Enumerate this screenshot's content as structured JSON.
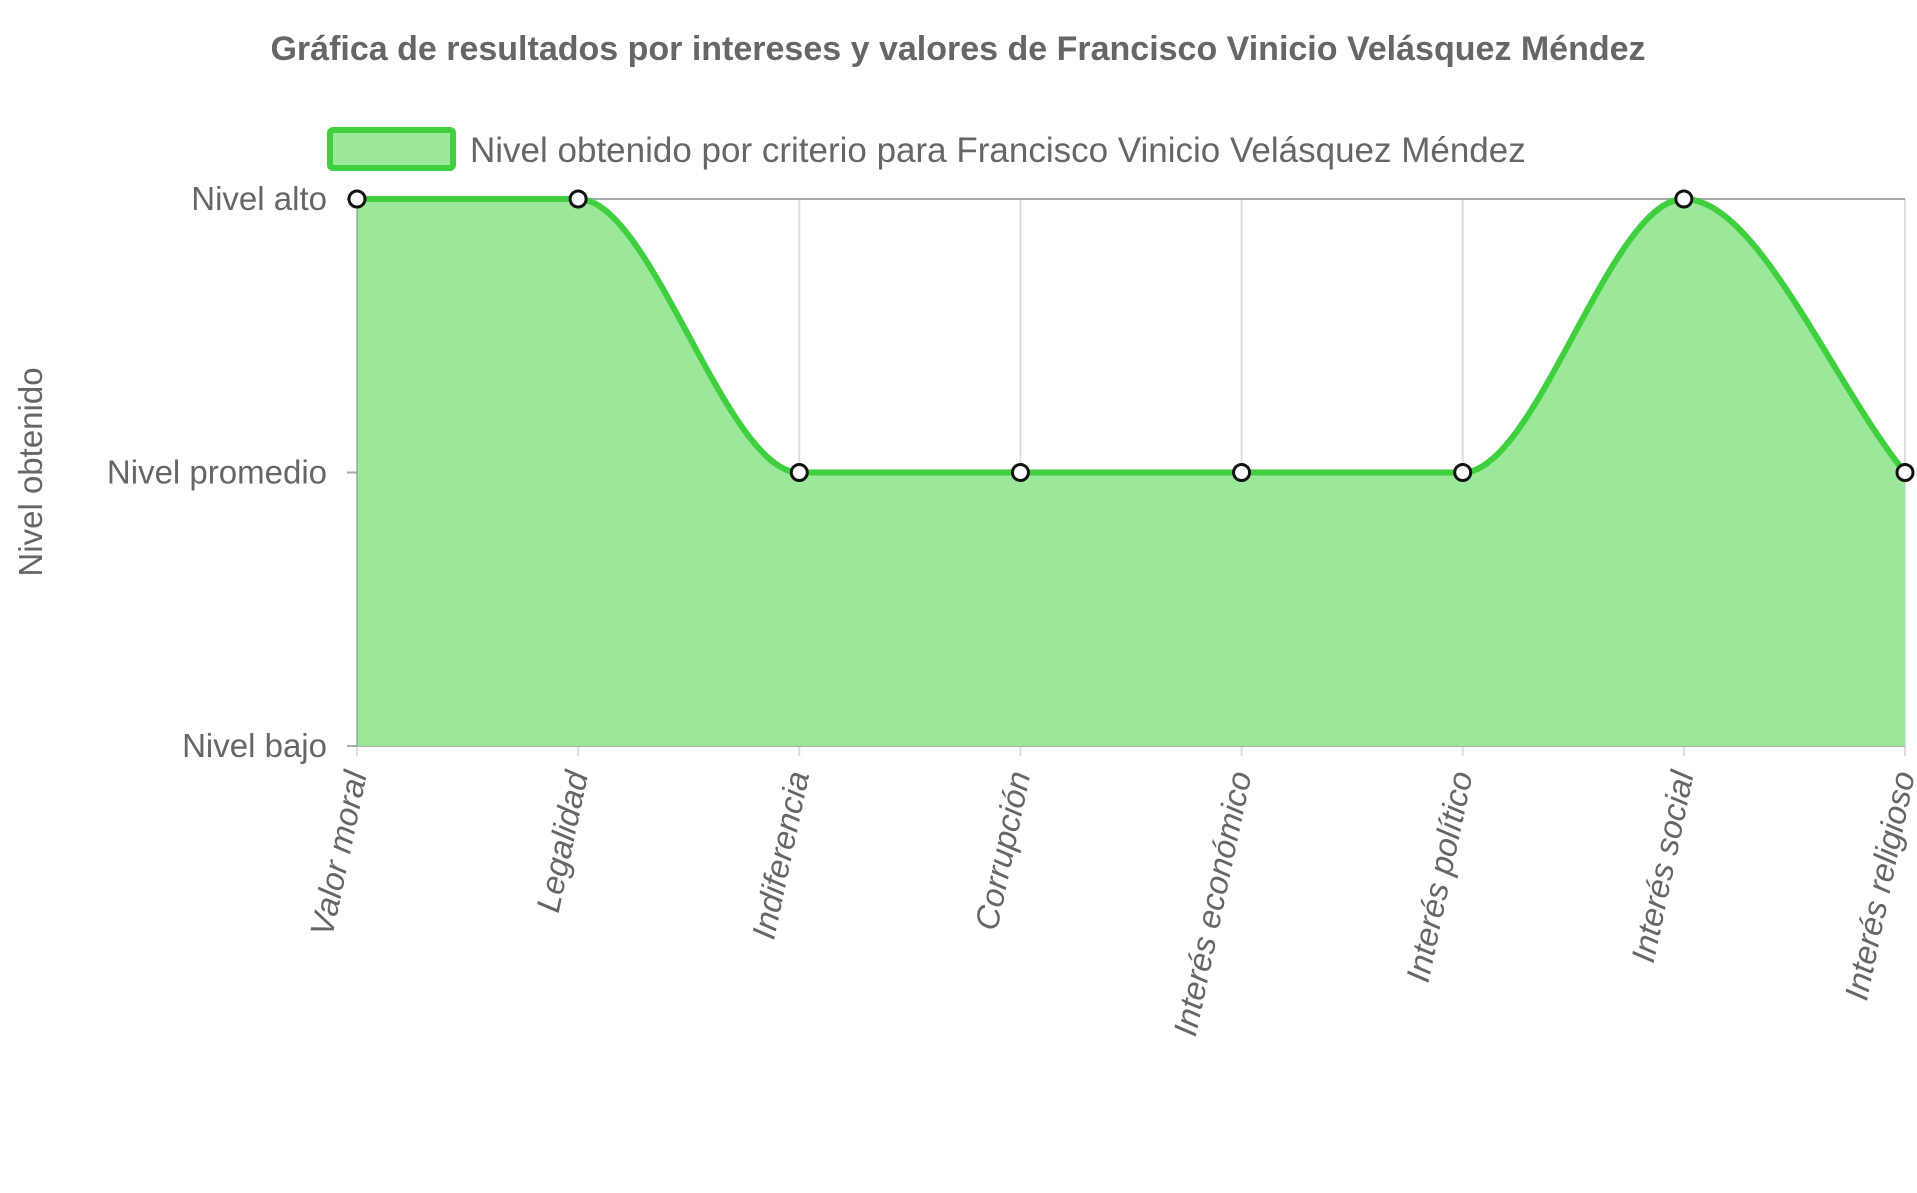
{
  "chart_data": {
    "type": "area",
    "title": "Gráfica de resultados por intereses y valores de Francisco Vinicio Velásquez Méndez",
    "ylabel": "Nivel obtenido",
    "xlabel": "",
    "categories": [
      "Valor moral",
      "Legalidad",
      "Indiferencia",
      "Corrupción",
      "Interés económico",
      "Interés político",
      "Interés social",
      "Interés religioso"
    ],
    "y_ticks": [
      {
        "value": 0,
        "label": "Nivel bajo"
      },
      {
        "value": 1,
        "label": "Nivel promedio"
      },
      {
        "value": 2,
        "label": "Nivel alto"
      }
    ],
    "ylim": [
      0,
      2
    ],
    "series": [
      {
        "name": "Nivel obtenido por criterio para Francisco Vinicio Velásquez Méndez",
        "values": [
          2,
          2,
          1,
          1,
          1,
          1,
          2,
          1
        ],
        "line_color": "#3fcf3f",
        "fill_color": "#9be89b",
        "point_fill": "#ffffff",
        "point_stroke": "#111111"
      }
    ],
    "grid": true,
    "smooth": true,
    "legend_position": "top",
    "colors": {
      "text": "#666666",
      "grid": "#dddddd",
      "major_grid": "#aaaaaa"
    }
  }
}
